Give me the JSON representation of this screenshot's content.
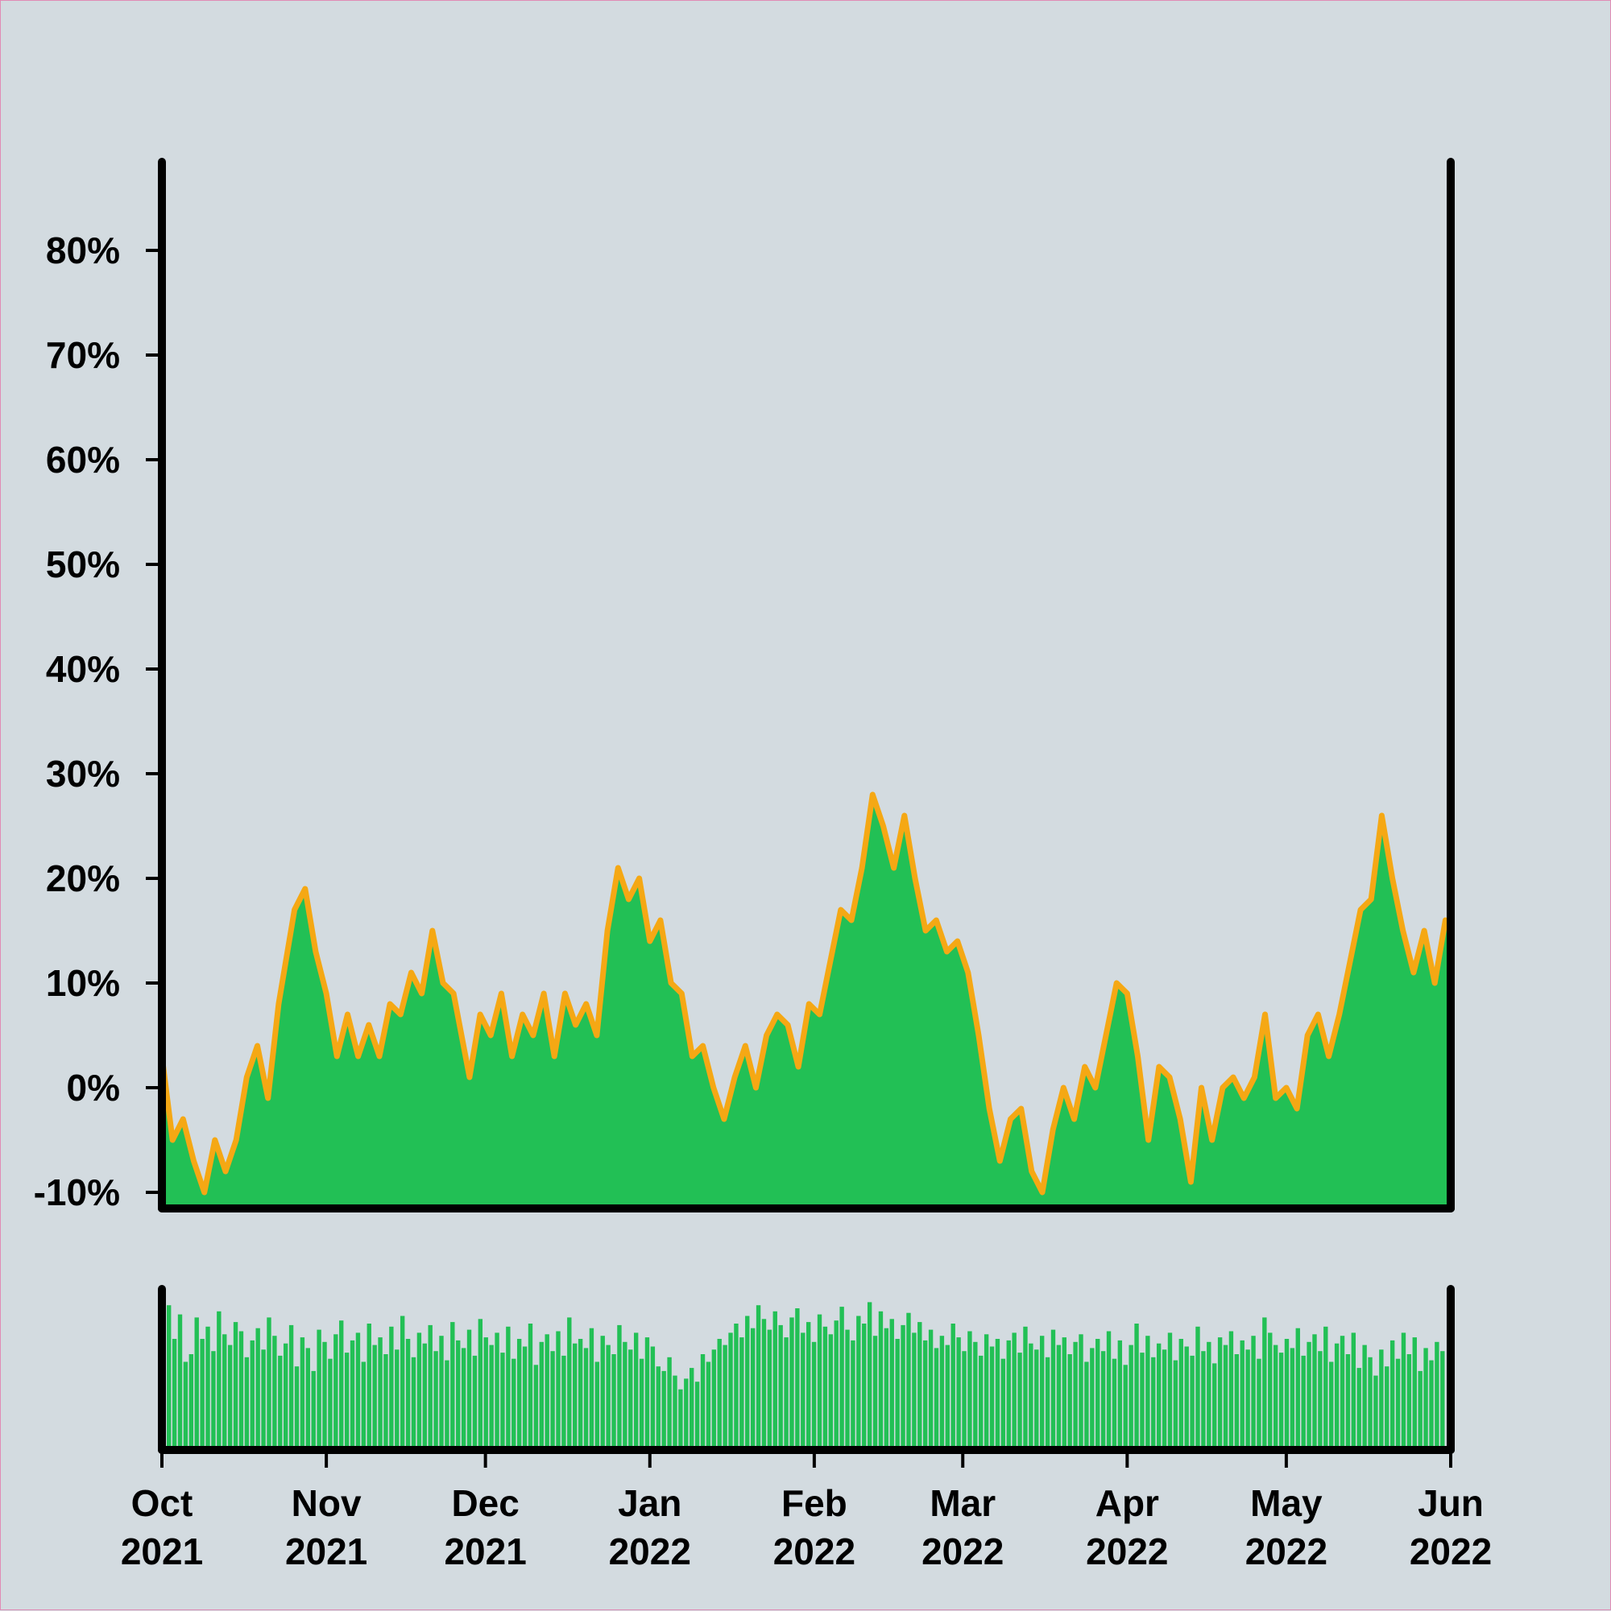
{
  "chart_data": [
    {
      "type": "area",
      "panel": "main",
      "x_unit": "date",
      "x_range": [
        "2021-10-01",
        "2022-06-01"
      ],
      "ylim": [
        -10,
        90
      ],
      "yticks": [
        -10,
        0,
        10,
        20,
        30,
        40,
        50,
        60,
        70,
        80
      ],
      "ytick_labels": [
        "-10%",
        "0%",
        "10%",
        "20%",
        "30%",
        "40%",
        "50%",
        "60%",
        "70%",
        "80%"
      ],
      "grid": false,
      "legend": "none",
      "colors": {
        "fill": "#22c055",
        "line": "#f5a814",
        "background": "#d3dbe0",
        "axis": "#000000"
      },
      "series": [
        {
          "points": [
            [
              "2021-10-01",
              3
            ],
            [
              "2021-10-03",
              -5
            ],
            [
              "2021-10-05",
              -3
            ],
            [
              "2021-10-07",
              -7
            ],
            [
              "2021-10-09",
              -10
            ],
            [
              "2021-10-11",
              -5
            ],
            [
              "2021-10-13",
              -8
            ],
            [
              "2021-10-15",
              -5
            ],
            [
              "2021-10-17",
              1
            ],
            [
              "2021-10-19",
              4
            ],
            [
              "2021-10-21",
              -1
            ],
            [
              "2021-10-23",
              8
            ],
            [
              "2021-10-26",
              17
            ],
            [
              "2021-10-28",
              19
            ],
            [
              "2021-10-30",
              13
            ],
            [
              "2021-11-01",
              9
            ],
            [
              "2021-11-03",
              3
            ],
            [
              "2021-11-05",
              7
            ],
            [
              "2021-11-07",
              3
            ],
            [
              "2021-11-09",
              6
            ],
            [
              "2021-11-11",
              3
            ],
            [
              "2021-11-13",
              8
            ],
            [
              "2021-11-15",
              7
            ],
            [
              "2021-11-17",
              11
            ],
            [
              "2021-11-19",
              9
            ],
            [
              "2021-11-21",
              15
            ],
            [
              "2021-11-23",
              10
            ],
            [
              "2021-11-25",
              9
            ],
            [
              "2021-11-28",
              1
            ],
            [
              "2021-11-30",
              7
            ],
            [
              "2021-12-02",
              5
            ],
            [
              "2021-12-04",
              9
            ],
            [
              "2021-12-06",
              3
            ],
            [
              "2021-12-08",
              7
            ],
            [
              "2021-12-10",
              5
            ],
            [
              "2021-12-12",
              9
            ],
            [
              "2021-12-14",
              3
            ],
            [
              "2021-12-16",
              9
            ],
            [
              "2021-12-18",
              6
            ],
            [
              "2021-12-20",
              8
            ],
            [
              "2021-12-22",
              5
            ],
            [
              "2021-12-24",
              15
            ],
            [
              "2021-12-26",
              21
            ],
            [
              "2021-12-28",
              18
            ],
            [
              "2021-12-30",
              20
            ],
            [
              "2022-01-01",
              14
            ],
            [
              "2022-01-03",
              16
            ],
            [
              "2022-01-05",
              10
            ],
            [
              "2022-01-07",
              9
            ],
            [
              "2022-01-09",
              3
            ],
            [
              "2022-01-11",
              4
            ],
            [
              "2022-01-13",
              0
            ],
            [
              "2022-01-15",
              -3
            ],
            [
              "2022-01-17",
              1
            ],
            [
              "2022-01-19",
              4
            ],
            [
              "2022-01-21",
              0
            ],
            [
              "2022-01-23",
              5
            ],
            [
              "2022-01-25",
              7
            ],
            [
              "2022-01-27",
              6
            ],
            [
              "2022-01-29",
              2
            ],
            [
              "2022-01-31",
              8
            ],
            [
              "2022-02-02",
              7
            ],
            [
              "2022-02-04",
              12
            ],
            [
              "2022-02-06",
              17
            ],
            [
              "2022-02-08",
              16
            ],
            [
              "2022-02-10",
              21
            ],
            [
              "2022-02-12",
              28
            ],
            [
              "2022-02-14",
              25
            ],
            [
              "2022-02-16",
              21
            ],
            [
              "2022-02-18",
              26
            ],
            [
              "2022-02-20",
              20
            ],
            [
              "2022-02-22",
              15
            ],
            [
              "2022-02-24",
              16
            ],
            [
              "2022-02-26",
              13
            ],
            [
              "2022-02-28",
              14
            ],
            [
              "2022-03-02",
              11
            ],
            [
              "2022-03-04",
              5
            ],
            [
              "2022-03-06",
              -2
            ],
            [
              "2022-03-08",
              -7
            ],
            [
              "2022-03-10",
              -3
            ],
            [
              "2022-03-12",
              -2
            ],
            [
              "2022-03-14",
              -8
            ],
            [
              "2022-03-16",
              -10
            ],
            [
              "2022-03-18",
              -4
            ],
            [
              "2022-03-20",
              0
            ],
            [
              "2022-03-22",
              -3
            ],
            [
              "2022-03-24",
              2
            ],
            [
              "2022-03-26",
              0
            ],
            [
              "2022-03-28",
              5
            ],
            [
              "2022-03-30",
              10
            ],
            [
              "2022-04-01",
              9
            ],
            [
              "2022-04-03",
              3
            ],
            [
              "2022-04-05",
              -5
            ],
            [
              "2022-04-07",
              2
            ],
            [
              "2022-04-09",
              1
            ],
            [
              "2022-04-11",
              -3
            ],
            [
              "2022-04-13",
              -9
            ],
            [
              "2022-04-15",
              0
            ],
            [
              "2022-04-17",
              -5
            ],
            [
              "2022-04-19",
              0
            ],
            [
              "2022-04-21",
              1
            ],
            [
              "2022-04-23",
              -1
            ],
            [
              "2022-04-25",
              1
            ],
            [
              "2022-04-27",
              7
            ],
            [
              "2022-04-29",
              -1
            ],
            [
              "2022-05-01",
              0
            ],
            [
              "2022-05-03",
              -2
            ],
            [
              "2022-05-05",
              5
            ],
            [
              "2022-05-07",
              7
            ],
            [
              "2022-05-09",
              3
            ],
            [
              "2022-05-11",
              7
            ],
            [
              "2022-05-13",
              12
            ],
            [
              "2022-05-15",
              17
            ],
            [
              "2022-05-17",
              18
            ],
            [
              "2022-05-19",
              26
            ],
            [
              "2022-05-21",
              20
            ],
            [
              "2022-05-23",
              15
            ],
            [
              "2022-05-25",
              11
            ],
            [
              "2022-05-27",
              15
            ],
            [
              "2022-05-29",
              10
            ],
            [
              "2022-05-31",
              16
            ],
            [
              "2022-06-01",
              15
            ]
          ]
        }
      ]
    },
    {
      "type": "bar",
      "panel": "volume",
      "x_unit": "date",
      "x_range": [
        "2021-10-01",
        "2022-06-01"
      ],
      "xticks": [
        "2021-10-01",
        "2021-11-01",
        "2021-12-01",
        "2022-01-01",
        "2022-02-01",
        "2022-03-01",
        "2022-04-01",
        "2022-05-01",
        "2022-06-01"
      ],
      "xtick_labels": [
        [
          "Oct",
          "2021"
        ],
        [
          "Nov",
          "2021"
        ],
        [
          "Dec",
          "2021"
        ],
        [
          "Jan",
          "2022"
        ],
        [
          "Feb",
          "2022"
        ],
        [
          "Mar",
          "2022"
        ],
        [
          "Apr",
          "2022"
        ],
        [
          "May",
          "2022"
        ],
        [
          "Jun",
          "2022"
        ]
      ],
      "ylim": [
        0,
        1
      ],
      "y_axis_labels": "none",
      "colors": {
        "bar": "#22c055"
      },
      "values": [
        0.92,
        0.7,
        0.86,
        0.55,
        0.6,
        0.84,
        0.7,
        0.78,
        0.62,
        0.88,
        0.73,
        0.66,
        0.81,
        0.75,
        0.58,
        0.69,
        0.77,
        0.63,
        0.84,
        0.72,
        0.59,
        0.67,
        0.79,
        0.52,
        0.71,
        0.64,
        0.49,
        0.76,
        0.68,
        0.57,
        0.73,
        0.82,
        0.61,
        0.69,
        0.74,
        0.55,
        0.8,
        0.66,
        0.71,
        0.6,
        0.78,
        0.63,
        0.85,
        0.7,
        0.58,
        0.74,
        0.67,
        0.79,
        0.62,
        0.72,
        0.56,
        0.81,
        0.69,
        0.64,
        0.76,
        0.59,
        0.83,
        0.71,
        0.66,
        0.74,
        0.61,
        0.78,
        0.57,
        0.7,
        0.65,
        0.8,
        0.53,
        0.68,
        0.73,
        0.62,
        0.75,
        0.59,
        0.84,
        0.67,
        0.7,
        0.64,
        0.77,
        0.55,
        0.72,
        0.66,
        0.6,
        0.79,
        0.68,
        0.63,
        0.74,
        0.57,
        0.71,
        0.65,
        0.52,
        0.49,
        0.58,
        0.46,
        0.37,
        0.44,
        0.51,
        0.42,
        0.6,
        0.55,
        0.63,
        0.7,
        0.66,
        0.74,
        0.8,
        0.71,
        0.85,
        0.77,
        0.92,
        0.83,
        0.76,
        0.88,
        0.79,
        0.71,
        0.84,
        0.9,
        0.74,
        0.81,
        0.68,
        0.86,
        0.78,
        0.73,
        0.82,
        0.91,
        0.76,
        0.69,
        0.85,
        0.8,
        0.94,
        0.72,
        0.88,
        0.77,
        0.83,
        0.7,
        0.79,
        0.87,
        0.74,
        0.81,
        0.69,
        0.76,
        0.64,
        0.72,
        0.66,
        0.8,
        0.71,
        0.62,
        0.75,
        0.68,
        0.59,
        0.73,
        0.65,
        0.7,
        0.57,
        0.69,
        0.74,
        0.61,
        0.78,
        0.67,
        0.63,
        0.72,
        0.58,
        0.76,
        0.66,
        0.71,
        0.6,
        0.68,
        0.73,
        0.55,
        0.64,
        0.7,
        0.62,
        0.75,
        0.57,
        0.69,
        0.53,
        0.66,
        0.8,
        0.61,
        0.72,
        0.58,
        0.67,
        0.63,
        0.74,
        0.56,
        0.7,
        0.65,
        0.59,
        0.78,
        0.62,
        0.68,
        0.54,
        0.71,
        0.66,
        0.75,
        0.6,
        0.69,
        0.63,
        0.72,
        0.57,
        0.84,
        0.74,
        0.66,
        0.61,
        0.7,
        0.64,
        0.77,
        0.59,
        0.68,
        0.73,
        0.62,
        0.78,
        0.55,
        0.67,
        0.72,
        0.6,
        0.74,
        0.51,
        0.66,
        0.58,
        0.46,
        0.63,
        0.52,
        0.69,
        0.57,
        0.74,
        0.6,
        0.71,
        0.49,
        0.64,
        0.56,
        0.68,
        0.62
      ]
    }
  ]
}
